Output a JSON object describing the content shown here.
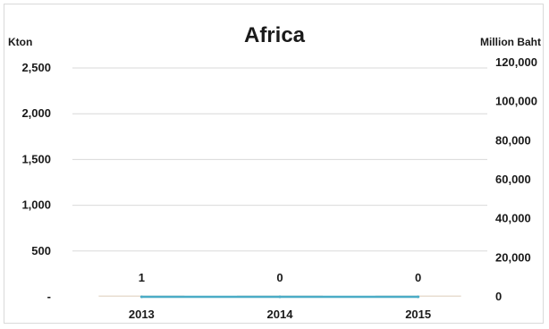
{
  "chart_data": {
    "type": "bar",
    "title": "Africa",
    "left_axis_unit": "Kton",
    "right_axis_unit": "Million Baht",
    "categories": [
      "2013",
      "2014",
      "2015"
    ],
    "left_axis": {
      "ylim": [
        0,
        2500
      ],
      "tick_labels": [
        "-",
        "500",
        "1,000",
        "1,500",
        "2,000",
        "2,500"
      ]
    },
    "right_axis": {
      "ylim": [
        0,
        120000
      ],
      "tick_labels": [
        "0",
        "20,000",
        "40,000",
        "60,000",
        "80,000",
        "100,000",
        "120,000"
      ]
    },
    "series": [
      {
        "axis": "left",
        "type": "bar",
        "values": [
          1,
          0,
          0
        ],
        "data_labels": [
          "1",
          "0",
          "0"
        ],
        "color": "#e8ddd0"
      },
      {
        "axis": "right",
        "type": "line",
        "values": [
          0,
          0,
          0
        ],
        "color": "#4bacc6"
      }
    ],
    "grid": true
  }
}
